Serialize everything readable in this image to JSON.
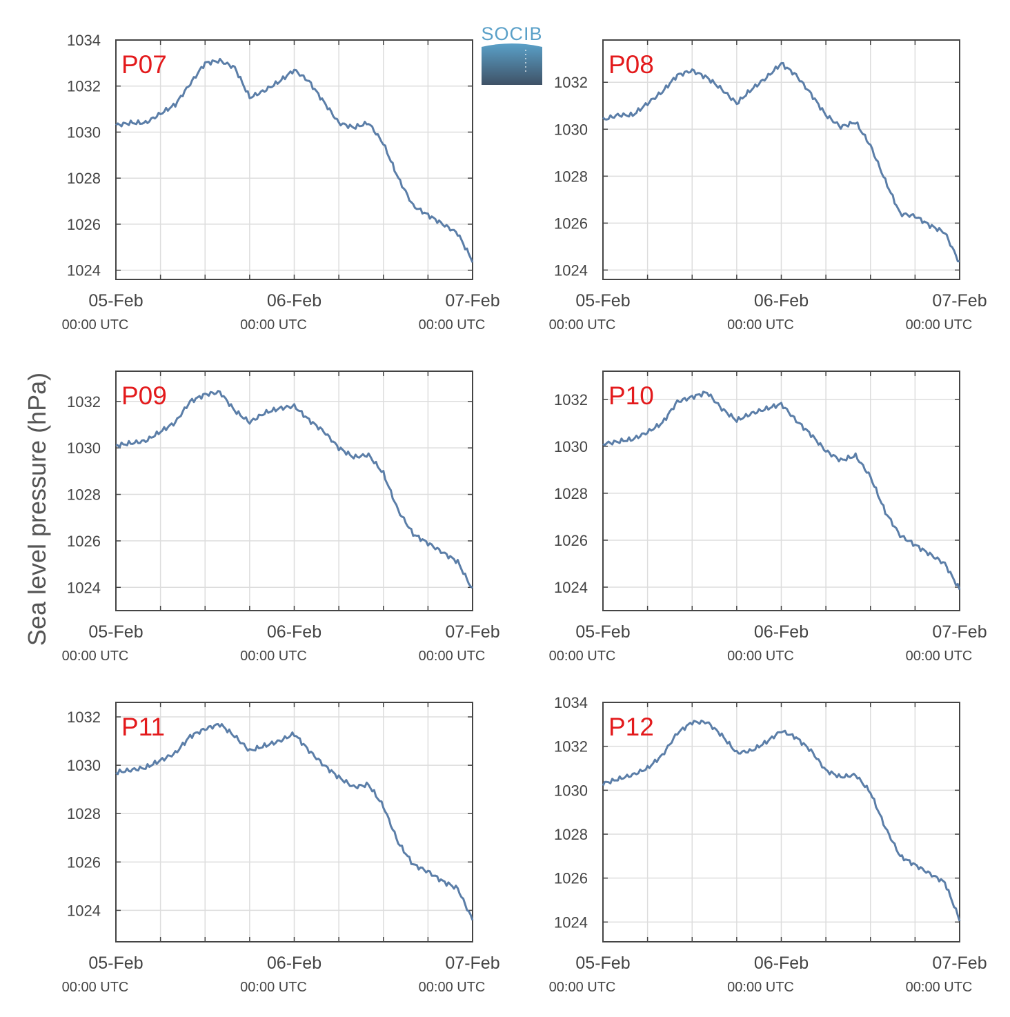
{
  "figure": {
    "ylabel": "Sea level pressure (hPa)",
    "logo_text": "SOCIB",
    "x_tick_dates": [
      "05-Feb",
      "06-Feb",
      "07-Feb"
    ],
    "x_tick_time": "00:00 UTC",
    "colors": {
      "line": "#5b7ea8",
      "station_label": "#e31a1c",
      "axis": "#444444",
      "grid": "#dddddd",
      "logo_top": "#5aa0c8",
      "logo_bottom": "#3f5266"
    }
  },
  "chart_data": [
    {
      "type": "line",
      "station": "P07",
      "ylim": [
        1023.6,
        1034.0
      ],
      "yticks": [
        1024,
        1026,
        1028,
        1030,
        1032,
        1034
      ],
      "x": [
        0,
        2,
        4,
        6,
        8,
        10,
        12,
        14,
        16,
        18,
        20,
        22,
        24,
        26,
        28,
        30,
        32,
        34,
        36,
        38,
        40,
        42,
        44,
        46,
        48
      ],
      "values": [
        1030.3,
        1030.4,
        1030.4,
        1030.8,
        1031.2,
        1032.1,
        1033.0,
        1033.1,
        1032.8,
        1031.5,
        1031.8,
        1032.2,
        1032.7,
        1032.2,
        1031.3,
        1030.4,
        1030.2,
        1030.4,
        1029.5,
        1028.0,
        1026.8,
        1026.4,
        1026.0,
        1025.6,
        1024.4
      ]
    },
    {
      "type": "line",
      "station": "P08",
      "ylim": [
        1023.6,
        1033.8
      ],
      "yticks": [
        1024,
        1026,
        1028,
        1030,
        1032
      ],
      "x": [
        0,
        2,
        4,
        6,
        8,
        10,
        12,
        14,
        16,
        18,
        20,
        22,
        24,
        26,
        28,
        30,
        32,
        34,
        36,
        38,
        40,
        42,
        44,
        46,
        48
      ],
      "values": [
        1030.4,
        1030.6,
        1030.6,
        1031.1,
        1031.6,
        1032.3,
        1032.5,
        1032.2,
        1031.7,
        1031.1,
        1031.7,
        1032.2,
        1032.8,
        1032.3,
        1031.5,
        1030.6,
        1030.1,
        1030.3,
        1029.3,
        1027.8,
        1026.4,
        1026.3,
        1025.9,
        1025.6,
        1024.3
      ]
    },
    {
      "type": "line",
      "station": "P09",
      "ylim": [
        1023.0,
        1033.3
      ],
      "yticks": [
        1024,
        1026,
        1028,
        1030,
        1032
      ],
      "x": [
        0,
        2,
        4,
        6,
        8,
        10,
        12,
        14,
        16,
        18,
        20,
        22,
        24,
        26,
        28,
        30,
        32,
        34,
        36,
        38,
        40,
        42,
        44,
        46,
        48
      ],
      "values": [
        1030.1,
        1030.2,
        1030.3,
        1030.7,
        1031.1,
        1032.0,
        1032.3,
        1032.4,
        1031.6,
        1031.1,
        1031.5,
        1031.7,
        1031.8,
        1031.2,
        1030.7,
        1030.0,
        1029.6,
        1029.7,
        1028.9,
        1027.3,
        1026.3,
        1025.9,
        1025.5,
        1025.1,
        1023.9
      ]
    },
    {
      "type": "line",
      "station": "P10",
      "ylim": [
        1023.0,
        1033.2
      ],
      "yticks": [
        1024,
        1026,
        1028,
        1030,
        1032
      ],
      "x": [
        0,
        2,
        4,
        6,
        8,
        10,
        12,
        14,
        16,
        18,
        20,
        22,
        24,
        26,
        28,
        30,
        32,
        34,
        36,
        38,
        40,
        42,
        44,
        46,
        48
      ],
      "values": [
        1030.1,
        1030.2,
        1030.3,
        1030.6,
        1031.0,
        1031.9,
        1032.1,
        1032.3,
        1031.6,
        1031.1,
        1031.4,
        1031.6,
        1031.8,
        1031.1,
        1030.5,
        1029.8,
        1029.4,
        1029.6,
        1028.7,
        1027.2,
        1026.2,
        1025.8,
        1025.4,
        1025.0,
        1023.9
      ]
    },
    {
      "type": "line",
      "station": "P11",
      "ylim": [
        1022.7,
        1032.6
      ],
      "yticks": [
        1024,
        1026,
        1028,
        1030,
        1032
      ],
      "x": [
        0,
        2,
        4,
        6,
        8,
        10,
        12,
        14,
        16,
        18,
        20,
        22,
        24,
        26,
        28,
        30,
        32,
        34,
        36,
        38,
        40,
        42,
        44,
        46,
        48
      ],
      "values": [
        1029.7,
        1029.8,
        1029.9,
        1030.2,
        1030.5,
        1031.2,
        1031.5,
        1031.7,
        1031.2,
        1030.6,
        1030.8,
        1031.0,
        1031.3,
        1030.6,
        1030.0,
        1029.5,
        1029.1,
        1029.2,
        1028.3,
        1026.8,
        1025.9,
        1025.6,
        1025.2,
        1024.9,
        1023.6
      ]
    },
    {
      "type": "line",
      "station": "P12",
      "ylim": [
        1023.1,
        1034.0
      ],
      "yticks": [
        1024,
        1026,
        1028,
        1030,
        1032,
        1034
      ],
      "x": [
        0,
        2,
        4,
        6,
        8,
        10,
        12,
        14,
        16,
        18,
        20,
        22,
        24,
        26,
        28,
        30,
        32,
        34,
        36,
        38,
        40,
        42,
        44,
        46,
        48
      ],
      "values": [
        1030.3,
        1030.5,
        1030.7,
        1031.0,
        1031.6,
        1032.6,
        1033.1,
        1033.1,
        1032.5,
        1031.7,
        1031.8,
        1032.2,
        1032.7,
        1032.4,
        1031.8,
        1030.9,
        1030.6,
        1030.7,
        1029.9,
        1028.3,
        1027.0,
        1026.6,
        1026.2,
        1025.8,
        1024.1
      ]
    }
  ]
}
